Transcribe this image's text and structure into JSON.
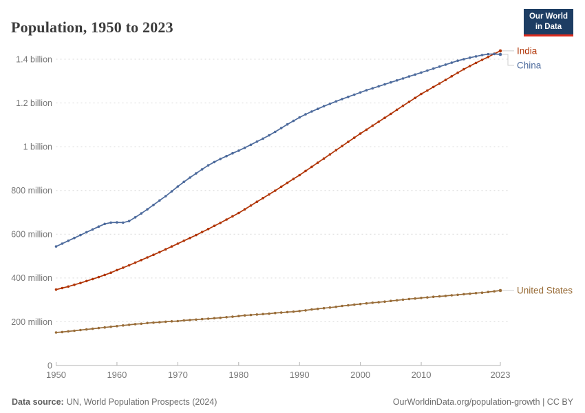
{
  "header": {
    "title": "Population, 1950 to 2023"
  },
  "logo": {
    "line1": "Our World",
    "line2": "in Data",
    "bg_color": "#1d3d63",
    "accent_color": "#dc2a1c"
  },
  "footer": {
    "source_label": "Data source:",
    "source_text": "UN, World Population Prospects (2024)",
    "right_text": "OurWorldinData.org/population-growth | CC BY"
  },
  "colors": {
    "grid": "#d9d9d9",
    "axis": "#b3b3b3",
    "tick_label": "#777777",
    "connector": "#cccccc",
    "title_text": "#3b3b3b"
  },
  "chart_data": {
    "type": "line",
    "title": "Population, 1950 to 2023",
    "xlabel": "",
    "ylabel": "",
    "unit": "people",
    "grid": "horizontal-dashed",
    "legend_position": "end-of-line-labels",
    "markers": "yearly-dots",
    "ylim": [
      0,
      1450
    ],
    "yticks": {
      "values": [
        0,
        200,
        400,
        600,
        800,
        1000,
        1200,
        1400
      ],
      "labels": [
        "0",
        "200 million",
        "400 million",
        "600 million",
        "800 million",
        "1 billion",
        "1.2 billion",
        "1.4 billion"
      ]
    },
    "xticks": [
      1950,
      1960,
      1970,
      1980,
      1990,
      2000,
      2010,
      2023
    ],
    "x": [
      1950,
      1951,
      1952,
      1953,
      1954,
      1955,
      1956,
      1957,
      1958,
      1959,
      1960,
      1961,
      1962,
      1963,
      1964,
      1965,
      1966,
      1967,
      1968,
      1969,
      1970,
      1971,
      1972,
      1973,
      1974,
      1975,
      1976,
      1977,
      1978,
      1979,
      1980,
      1981,
      1982,
      1983,
      1984,
      1985,
      1986,
      1987,
      1988,
      1989,
      1990,
      1991,
      1992,
      1993,
      1994,
      1995,
      1996,
      1997,
      1998,
      1999,
      2000,
      2001,
      2002,
      2003,
      2004,
      2005,
      2006,
      2007,
      2008,
      2009,
      2010,
      2011,
      2012,
      2013,
      2014,
      2015,
      2016,
      2017,
      2018,
      2019,
      2020,
      2021,
      2022,
      2023
    ],
    "values_unit": "millions of people",
    "series": [
      {
        "name": "India",
        "color": "#B13507",
        "values": [
          347,
          354,
          361,
          369,
          377,
          386,
          395,
          404,
          414,
          424,
          436,
          447,
          458,
          470,
          482,
          494,
          506,
          518,
          531,
          544,
          557,
          570,
          583,
          596,
          610,
          624,
          638,
          652,
          667,
          682,
          697,
          714,
          731,
          748,
          765,
          782,
          799,
          817,
          835,
          853,
          870,
          889,
          908,
          927,
          946,
          965,
          984,
          1003,
          1022,
          1041,
          1060,
          1078,
          1096,
          1114,
          1132,
          1150,
          1169,
          1187,
          1205,
          1223,
          1241,
          1257,
          1273,
          1289,
          1305,
          1322,
          1338,
          1354,
          1369,
          1383,
          1397,
          1410,
          1425,
          1438
        ]
      },
      {
        "name": "China",
        "color": "#4C6A9C",
        "values": [
          544,
          557,
          570,
          583,
          596,
          609,
          622,
          635,
          647,
          653,
          654,
          653,
          660,
          677,
          695,
          714,
          734,
          754,
          774,
          796,
          818,
          839,
          859,
          878,
          897,
          915,
          930,
          944,
          957,
          970,
          982,
          995,
          1009,
          1023,
          1037,
          1052,
          1068,
          1085,
          1102,
          1118,
          1134,
          1148,
          1161,
          1173,
          1185,
          1196,
          1207,
          1218,
          1228,
          1238,
          1248,
          1258,
          1267,
          1276,
          1285,
          1294,
          1303,
          1312,
          1321,
          1330,
          1339,
          1348,
          1357,
          1366,
          1375,
          1384,
          1393,
          1400,
          1407,
          1413,
          1419,
          1423,
          1424,
          1422
        ]
      },
      {
        "name": "United States",
        "color": "#996D39",
        "values": [
          151,
          153,
          156,
          159,
          162,
          165,
          168,
          171,
          174,
          177,
          180,
          183,
          186,
          189,
          191,
          194,
          196,
          198,
          200,
          202,
          203,
          206,
          208,
          210,
          212,
          214,
          216,
          218,
          221,
          223,
          226,
          229,
          231,
          233,
          235,
          237,
          240,
          242,
          244,
          246,
          249,
          252,
          256,
          259,
          262,
          265,
          268,
          272,
          275,
          278,
          281,
          284,
          287,
          289,
          292,
          295,
          298,
          301,
          304,
          306,
          309,
          311,
          314,
          316,
          318,
          321,
          323,
          326,
          328,
          331,
          333,
          336,
          339,
          343
        ]
      }
    ]
  }
}
